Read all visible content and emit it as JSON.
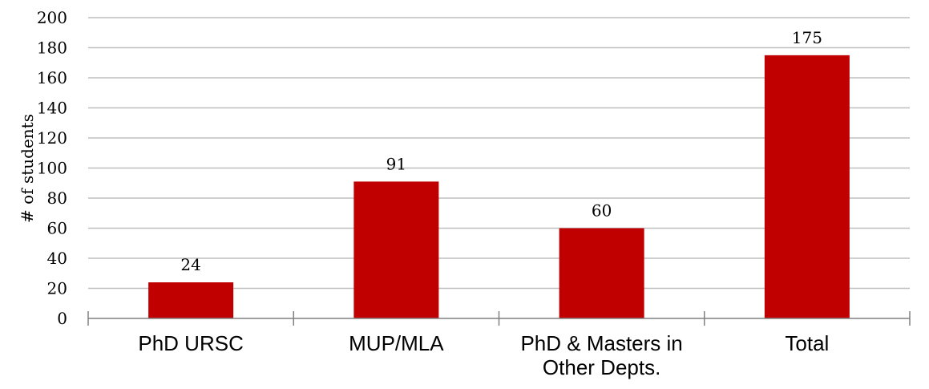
{
  "chart_data": {
    "type": "bar",
    "title": "",
    "xlabel": "",
    "ylabel": "# of students",
    "categories": [
      [
        "PhD URSC"
      ],
      [
        "MUP/MLA"
      ],
      [
        "PhD & Masters in",
        "Other Depts."
      ],
      [
        "Total"
      ]
    ],
    "values": [
      24,
      91,
      60,
      175
    ],
    "ylim": [
      0,
      200
    ],
    "yticks": [
      0,
      20,
      40,
      60,
      80,
      100,
      120,
      140,
      160,
      180,
      200
    ],
    "grid": true,
    "legend": "none",
    "colors": {
      "bar": "#C00000",
      "grid": "#BFBFBF",
      "axis": "#808080"
    }
  }
}
